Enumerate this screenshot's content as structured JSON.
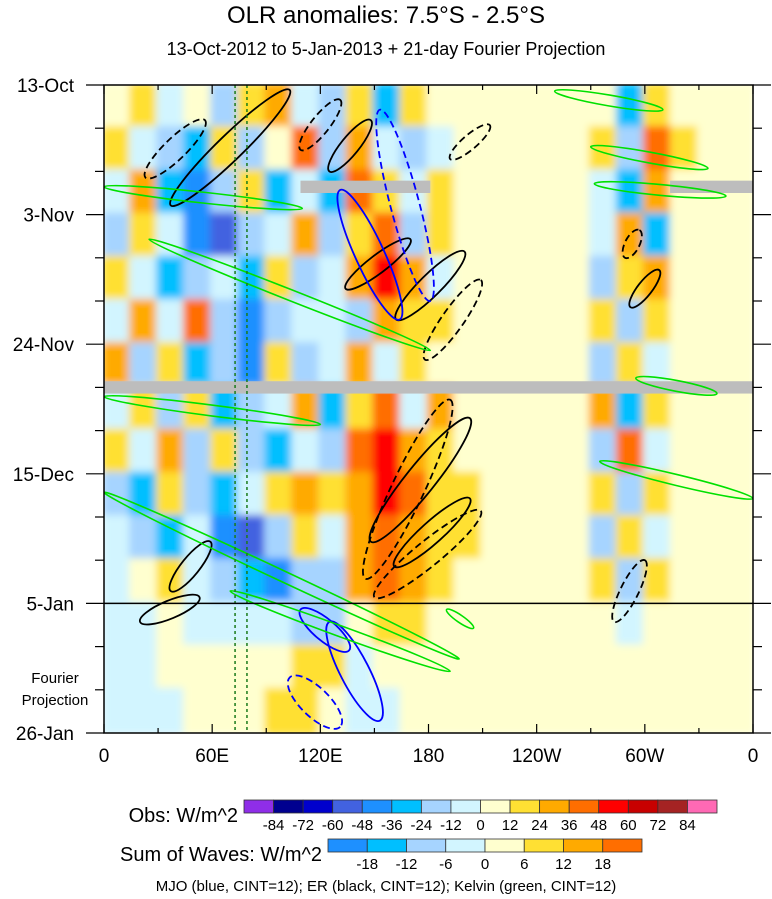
{
  "chart_data": {
    "type": "heatmap",
    "title": "OLR anomalies: 7.5°S - 2.5°S",
    "subtitle": "13-Oct-2012 to 5-Jan-2013 + 21-day Fourier Projection",
    "xlabel": "",
    "ylabel": "",
    "x_range_deg": [
      0,
      360
    ],
    "y_range_days": [
      0,
      105
    ],
    "x_ticks": [
      {
        "lon": 0,
        "label": "0"
      },
      {
        "lon": 60,
        "label": "60E"
      },
      {
        "lon": 120,
        "label": "120E"
      },
      {
        "lon": 180,
        "label": "180"
      },
      {
        "lon": 240,
        "label": "120W"
      },
      {
        "lon": 300,
        "label": "60W"
      },
      {
        "lon": 360,
        "label": "0"
      }
    ],
    "y_ticks": [
      {
        "day": 0,
        "label": "13-Oct"
      },
      {
        "day": 21,
        "label": "3-Nov"
      },
      {
        "day": 42,
        "label": "24-Nov"
      },
      {
        "day": 63,
        "label": "15-Dec"
      },
      {
        "day": 84,
        "label": "5-Jan"
      },
      {
        "day": 105,
        "label": "26-Jan"
      }
    ],
    "projection_label": [
      "Fourier",
      "Projection"
    ],
    "projection_start_day": 84,
    "grid_lon_step": 15,
    "grid_day_step": 7,
    "values": [
      [
        6,
        12,
        -12,
        6,
        -24,
        12,
        24,
        -12,
        -24,
        12,
        -36,
        12,
        6,
        0,
        0,
        0,
        0,
        0,
        6,
        -36,
        12,
        6,
        0,
        6
      ],
      [
        12,
        -12,
        -24,
        -36,
        12,
        -24,
        6,
        36,
        -24,
        24,
        -12,
        -24,
        -12,
        0,
        6,
        0,
        0,
        6,
        12,
        -24,
        36,
        12,
        6,
        0
      ],
      [
        -12,
        24,
        -36,
        -48,
        -24,
        12,
        -36,
        -12,
        -36,
        36,
        12,
        -12,
        12,
        6,
        0,
        6,
        0,
        0,
        -12,
        -36,
        24,
        6,
        0,
        0
      ],
      [
        -24,
        12,
        -12,
        -48,
        -60,
        -24,
        -12,
        24,
        -24,
        12,
        36,
        -24,
        12,
        6,
        6,
        0,
        0,
        6,
        -12,
        24,
        -36,
        6,
        6,
        0
      ],
      [
        12,
        -12,
        -36,
        -24,
        -12,
        -36,
        12,
        -24,
        -12,
        24,
        48,
        24,
        -12,
        6,
        0,
        6,
        0,
        0,
        -24,
        12,
        24,
        6,
        0,
        0
      ],
      [
        -12,
        24,
        -12,
        36,
        -24,
        -48,
        -24,
        -12,
        -12,
        -24,
        24,
        12,
        12,
        0,
        6,
        0,
        0,
        6,
        12,
        -24,
        12,
        6,
        0,
        6
      ],
      [
        24,
        -24,
        12,
        -36,
        -24,
        -48,
        12,
        -24,
        -12,
        24,
        -12,
        12,
        6,
        0,
        0,
        6,
        0,
        6,
        -24,
        12,
        -12,
        0,
        0,
        0
      ],
      [
        -12,
        12,
        -24,
        12,
        -36,
        -24,
        -12,
        24,
        -36,
        12,
        36,
        -12,
        24,
        6,
        6,
        0,
        0,
        0,
        24,
        -36,
        12,
        6,
        0,
        6
      ],
      [
        12,
        -12,
        24,
        -24,
        12,
        -24,
        -36,
        -12,
        -24,
        36,
        48,
        24,
        12,
        6,
        0,
        6,
        0,
        6,
        -24,
        36,
        -12,
        6,
        0,
        0
      ],
      [
        -24,
        -36,
        12,
        -24,
        -36,
        -12,
        12,
        24,
        12,
        24,
        48,
        36,
        12,
        12,
        6,
        0,
        0,
        6,
        12,
        -24,
        12,
        0,
        6,
        0
      ],
      [
        -12,
        -24,
        -36,
        -12,
        -48,
        -60,
        -24,
        12,
        -12,
        24,
        36,
        24,
        18,
        12,
        6,
        6,
        0,
        0,
        -24,
        12,
        -12,
        6,
        0,
        0
      ],
      [
        -12,
        6,
        12,
        -12,
        -24,
        -36,
        -48,
        -24,
        -24,
        24,
        36,
        24,
        18,
        6,
        6,
        0,
        0,
        6,
        12,
        -24,
        12,
        6,
        6,
        0
      ],
      [
        -3,
        -3,
        3,
        -3,
        -3,
        -3,
        -3,
        -8,
        -8,
        3,
        8,
        8,
        3,
        3,
        0,
        0,
        0,
        3,
        3,
        -3,
        3,
        3,
        0,
        0
      ],
      [
        -3,
        -3,
        0,
        3,
        3,
        0,
        3,
        8,
        8,
        -3,
        3,
        3,
        3,
        0,
        0,
        3,
        3,
        3,
        3,
        0,
        3,
        0,
        0,
        0
      ],
      [
        -3,
        -3,
        -3,
        0,
        3,
        3,
        8,
        8,
        3,
        -3,
        -3,
        3,
        3,
        0,
        0,
        3,
        3,
        3,
        3,
        3,
        3,
        0,
        0,
        0
      ]
    ],
    "missing_bands": [
      {
        "lon": [
          0,
          360
        ],
        "day": [
          48,
          50
        ]
      },
      {
        "lon": [
          109,
          181
        ],
        "day": [
          15.5,
          17.5
        ]
      },
      {
        "lon": [
          314,
          360
        ],
        "day": [
          15.5,
          17.5
        ]
      }
    ],
    "reference_lons": [
      72.7,
      79.3
    ],
    "obs_scale": {
      "label": "Obs: W/m^2",
      "edges": [
        -84,
        -72,
        -60,
        -48,
        -36,
        -24,
        -12,
        0,
        12,
        24,
        36,
        48,
        60,
        72,
        84
      ],
      "colors": [
        "#8f2ee8",
        "#00008f",
        "#0000cd",
        "#4262e0",
        "#1e90ff",
        "#00bfff",
        "#a6d4ff",
        "#d2f5ff",
        "#ffffcf",
        "#ffe033",
        "#ffaa00",
        "#ff6e00",
        "#ff0000",
        "#c80000",
        "#a52323",
        "#ff69b4"
      ]
    },
    "waves_scale": {
      "label": "Sum of Waves: W/m^2",
      "edges": [
        -18,
        -12,
        -6,
        0,
        6,
        12,
        18
      ],
      "colors": [
        "#1e90ff",
        "#00bfff",
        "#a6d4ff",
        "#d2f5ff",
        "#ffffcf",
        "#ffe033",
        "#ffaa00",
        "#ff6e00"
      ]
    },
    "contour_series": [
      {
        "name": "MJO",
        "color": "#0000ff"
      },
      {
        "name": "ER",
        "color": "#000000"
      },
      {
        "name": "Kelvin",
        "color": "#00e000"
      }
    ],
    "contours": [
      {
        "wave": "ER",
        "from": [
          37,
          19.5
        ],
        "to": [
          103,
          0.8
        ],
        "half_width_deg": 7,
        "dashed": false
      },
      {
        "wave": "ER",
        "from": [
          23,
          15
        ],
        "to": [
          56,
          5.7
        ],
        "half_width_deg": 6,
        "dashed": true
      },
      {
        "wave": "ER",
        "from": [
          125,
          14
        ],
        "to": [
          148,
          5.7
        ],
        "half_width_deg": 5,
        "dashed": false
      },
      {
        "wave": "ER",
        "from": [
          109,
          10.5
        ],
        "to": [
          131,
          2.4
        ],
        "half_width_deg": 5,
        "dashed": true
      },
      {
        "wave": "ER",
        "from": [
          134,
          33
        ],
        "to": [
          170,
          25
        ],
        "half_width_deg": 5,
        "dashed": false
      },
      {
        "wave": "ER",
        "from": [
          162,
          38
        ],
        "to": [
          200,
          27
        ],
        "half_width_deg": 6,
        "dashed": false
      },
      {
        "wave": "ER",
        "from": [
          178,
          44.5
        ],
        "to": [
          209,
          31.6
        ],
        "half_width_deg": 6,
        "dashed": true
      },
      {
        "wave": "ER",
        "from": [
          192,
          12
        ],
        "to": [
          214,
          6.5
        ],
        "half_width_deg": 4,
        "dashed": true
      },
      {
        "wave": "ER",
        "from": [
          148,
          74
        ],
        "to": [
          203,
          54
        ],
        "half_width_deg": 8,
        "dashed": false
      },
      {
        "wave": "ER",
        "from": [
          145,
          80
        ],
        "to": [
          192,
          51
        ],
        "half_width_deg": 9,
        "dashed": true
      },
      {
        "wave": "ER",
        "from": [
          161,
          78
        ],
        "to": [
          203,
          67
        ],
        "half_width_deg": 6,
        "dashed": false
      },
      {
        "wave": "ER",
        "from": [
          150,
          83
        ],
        "to": [
          209,
          69
        ],
        "half_width_deg": 7,
        "dashed": true
      },
      {
        "wave": "ER",
        "from": [
          37,
          82
        ],
        "to": [
          59,
          74
        ],
        "half_width_deg": 5,
        "dashed": false
      },
      {
        "wave": "ER",
        "from": [
          20,
          87
        ],
        "to": [
          53,
          83
        ],
        "half_width_deg": 5,
        "dashed": false
      },
      {
        "wave": "ER",
        "from": [
          289,
          28
        ],
        "to": [
          297,
          23.5
        ],
        "half_width_deg": 4,
        "dashed": true
      },
      {
        "wave": "ER",
        "from": [
          292,
          36
        ],
        "to": [
          308,
          30
        ],
        "half_width_deg": 4,
        "dashed": false
      },
      {
        "wave": "ER",
        "from": [
          283,
          87
        ],
        "to": [
          300,
          77
        ],
        "half_width_deg": 5,
        "dashed": true
      },
      {
        "wave": "MJO",
        "from": [
          131,
          17
        ],
        "to": [
          164,
          38
        ],
        "half_width_deg": 8,
        "dashed": false
      },
      {
        "wave": "MJO",
        "from": [
          153,
          4
        ],
        "to": [
          181,
          35
        ],
        "half_width_deg": 8,
        "dashed": true
      },
      {
        "wave": "MJO",
        "from": [
          109,
          85
        ],
        "to": [
          136,
          91.6
        ],
        "half_width_deg": 6,
        "dashed": false
      },
      {
        "wave": "MJO",
        "from": [
          125,
          87
        ],
        "to": [
          153,
          103
        ],
        "half_width_deg": 8,
        "dashed": false
      },
      {
        "wave": "MJO",
        "from": [
          103,
          96
        ],
        "to": [
          131,
          104
        ],
        "half_width_deg": 8,
        "dashed": true
      },
      {
        "wave": "Kelvin",
        "from": [
          0,
          66
        ],
        "to": [
          197,
          93
        ],
        "half_width_deg": 3,
        "dashed": false
      },
      {
        "wave": "Kelvin",
        "from": [
          25,
          25
        ],
        "to": [
          181,
          43
        ],
        "half_width_deg": 3,
        "dashed": false
      },
      {
        "wave": "Kelvin",
        "from": [
          70,
          82
        ],
        "to": [
          192,
          95
        ],
        "half_width_deg": 3,
        "dashed": false
      },
      {
        "wave": "Kelvin",
        "from": [
          0,
          16.5
        ],
        "to": [
          110,
          20
        ],
        "half_width_deg": 3,
        "dashed": false
      },
      {
        "wave": "Kelvin",
        "from": [
          0,
          50.5
        ],
        "to": [
          120,
          55
        ],
        "half_width_deg": 3,
        "dashed": false
      },
      {
        "wave": "Kelvin",
        "from": [
          275,
          61
        ],
        "to": [
          360,
          67
        ],
        "half_width_deg": 3,
        "dashed": false
      },
      {
        "wave": "Kelvin",
        "from": [
          270,
          10
        ],
        "to": [
          335,
          13.5
        ],
        "half_width_deg": 3,
        "dashed": false
      },
      {
        "wave": "Kelvin",
        "from": [
          272,
          16
        ],
        "to": [
          345,
          18
        ],
        "half_width_deg": 3,
        "dashed": false
      },
      {
        "wave": "Kelvin",
        "from": [
          250,
          1
        ],
        "to": [
          310,
          4
        ],
        "half_width_deg": 3,
        "dashed": false
      },
      {
        "wave": "Kelvin",
        "from": [
          295,
          47.5
        ],
        "to": [
          340,
          50
        ],
        "half_width_deg": 3,
        "dashed": false
      },
      {
        "wave": "Kelvin",
        "from": [
          190,
          85
        ],
        "to": [
          205,
          88
        ],
        "half_width_deg": 2,
        "dashed": false
      }
    ],
    "footer": "MJO (blue, CINT=12); ER (black, CINT=12); Kelvin (green, CINT=12)"
  }
}
